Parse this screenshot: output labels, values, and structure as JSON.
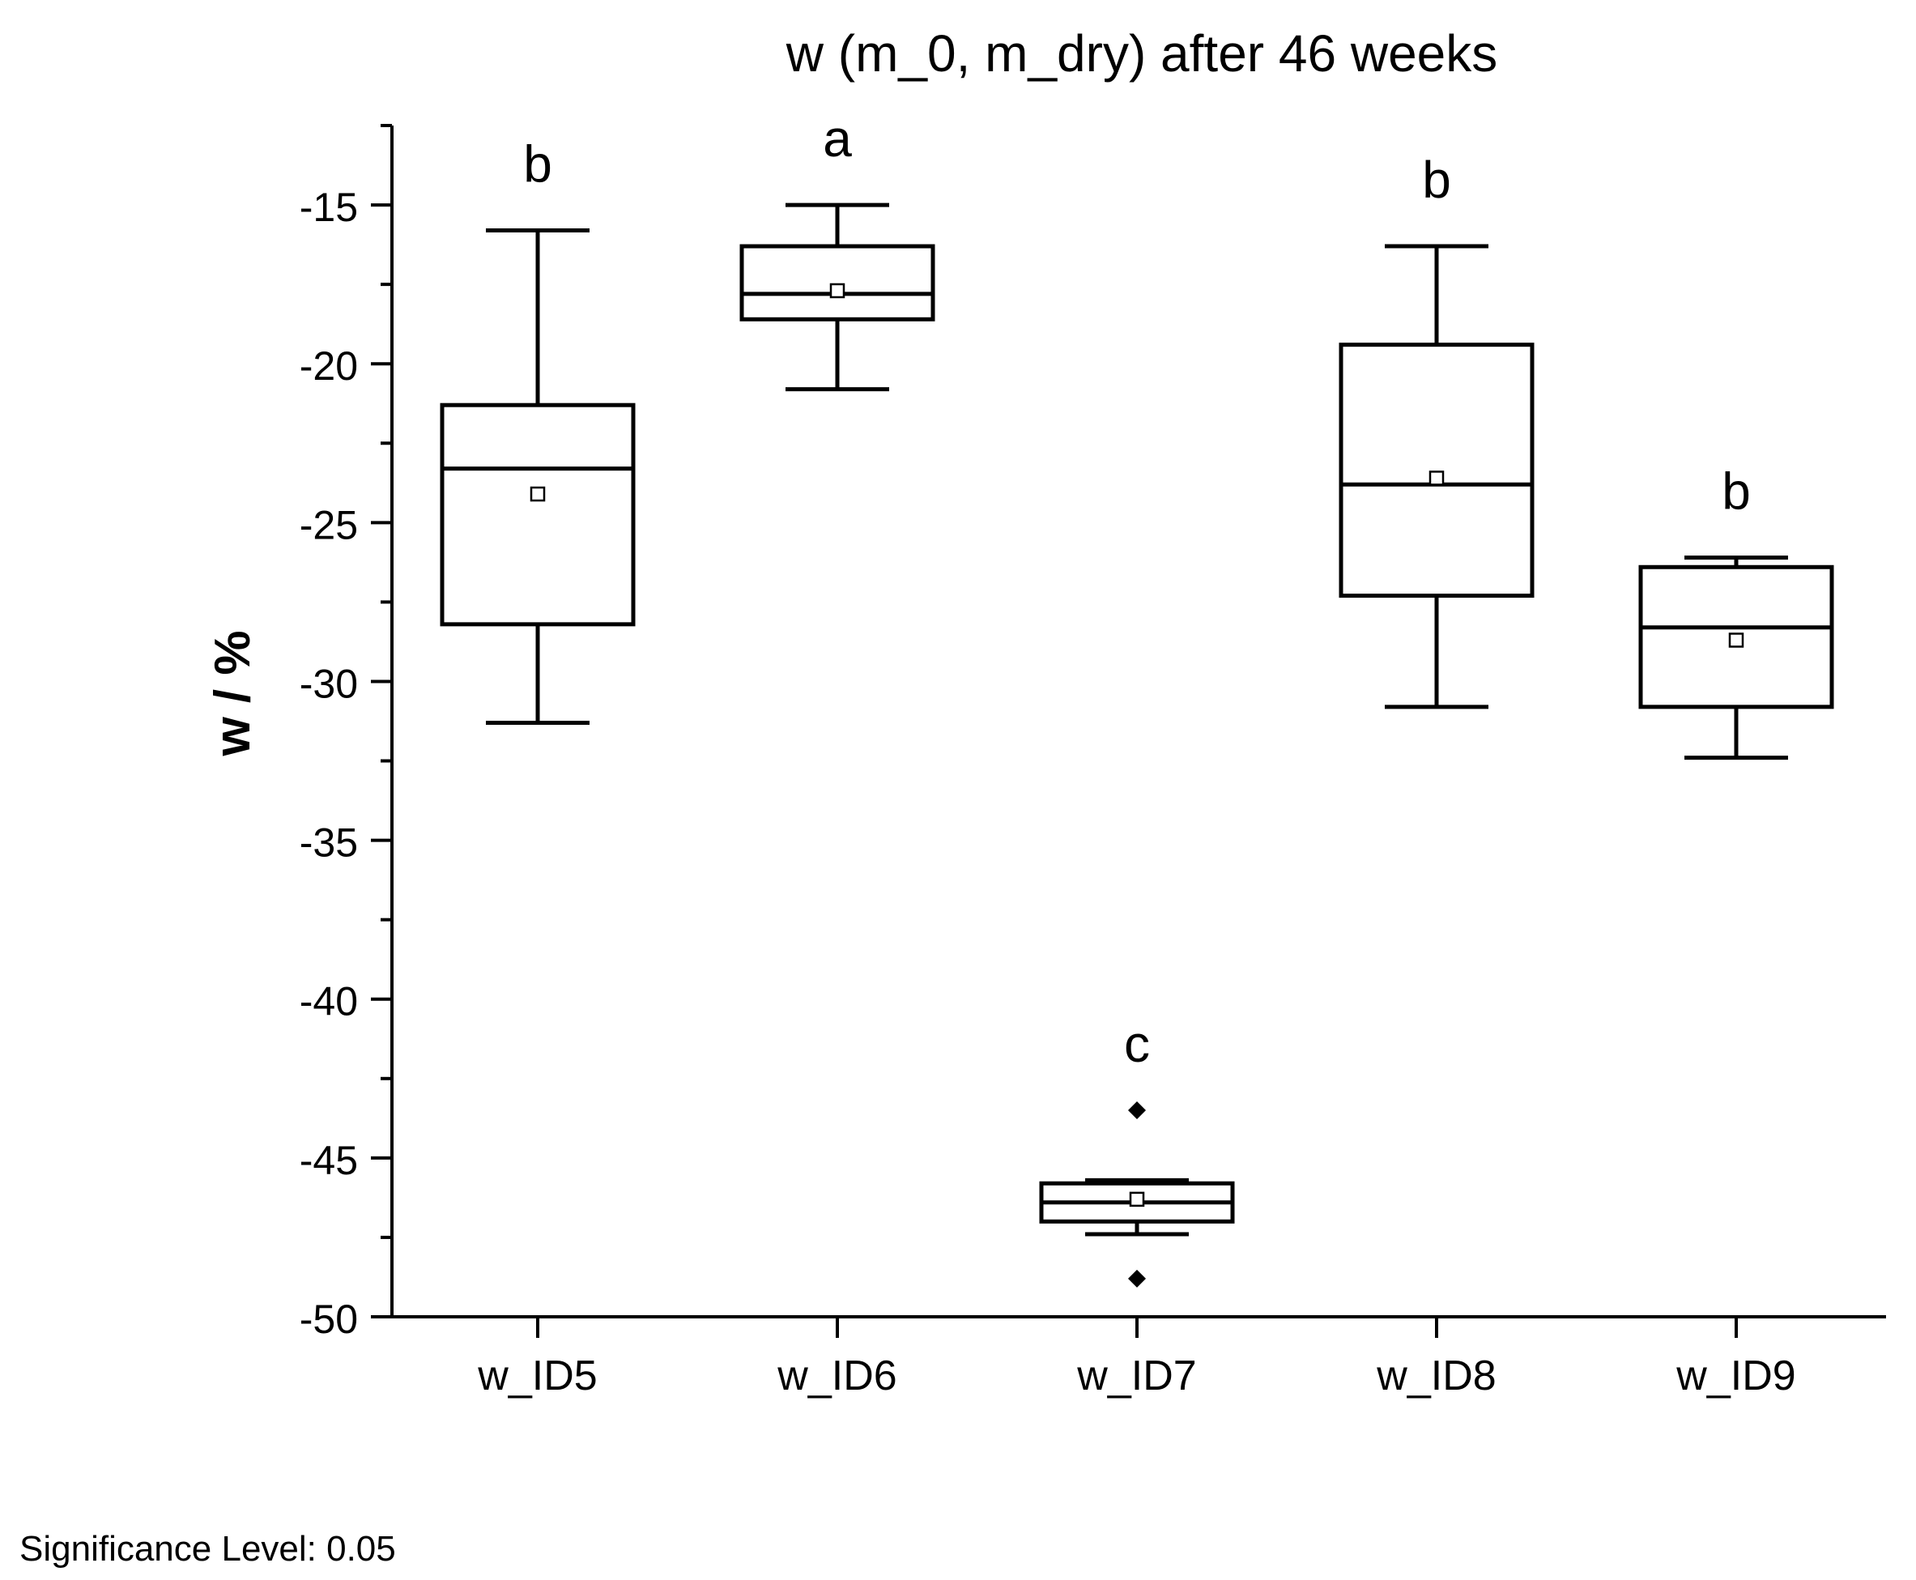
{
  "chart_data": {
    "type": "box",
    "title": "w (m_0, m_dry) after 46 weeks",
    "xlabel": "",
    "ylabel": "w / %",
    "ylim": [
      -50,
      -12.5
    ],
    "yticks": [
      -15,
      -20,
      -25,
      -30,
      -35,
      -40,
      -45,
      -50
    ],
    "categories": [
      "w_ID5",
      "w_ID6",
      "w_ID7",
      "w_ID8",
      "w_ID9"
    ],
    "boxes": [
      {
        "name": "w_ID5",
        "whisker_low": -31.3,
        "q1": -28.2,
        "median": -23.3,
        "q3": -21.3,
        "whisker_high": -15.8,
        "mean": -24.1,
        "outliers": [],
        "group_letter": "b"
      },
      {
        "name": "w_ID6",
        "whisker_low": -20.8,
        "q1": -18.6,
        "median": -17.8,
        "q3": -16.3,
        "whisker_high": -15.0,
        "mean": -17.7,
        "outliers": [],
        "group_letter": "a"
      },
      {
        "name": "w_ID7",
        "whisker_low": -47.4,
        "q1": -47.0,
        "median": -46.4,
        "q3": -45.8,
        "whisker_high": -45.7,
        "mean": -46.3,
        "outliers": [
          -43.5,
          -48.8
        ],
        "group_letter": "c"
      },
      {
        "name": "w_ID8",
        "whisker_low": -30.8,
        "q1": -27.3,
        "median": -23.8,
        "q3": -19.4,
        "whisker_high": -16.3,
        "mean": -23.6,
        "outliers": [],
        "group_letter": "b"
      },
      {
        "name": "w_ID9",
        "whisker_low": -32.4,
        "q1": -30.8,
        "median": -28.3,
        "q3": -26.4,
        "whisker_high": -26.1,
        "mean": -28.7,
        "outliers": [],
        "group_letter": "b"
      }
    ],
    "colors": {
      "line": "#000000",
      "mean_marker_fill": "#ffffff",
      "outlier": "#000000"
    }
  },
  "footer": {
    "significance_note": "Significance Level: 0.05"
  }
}
